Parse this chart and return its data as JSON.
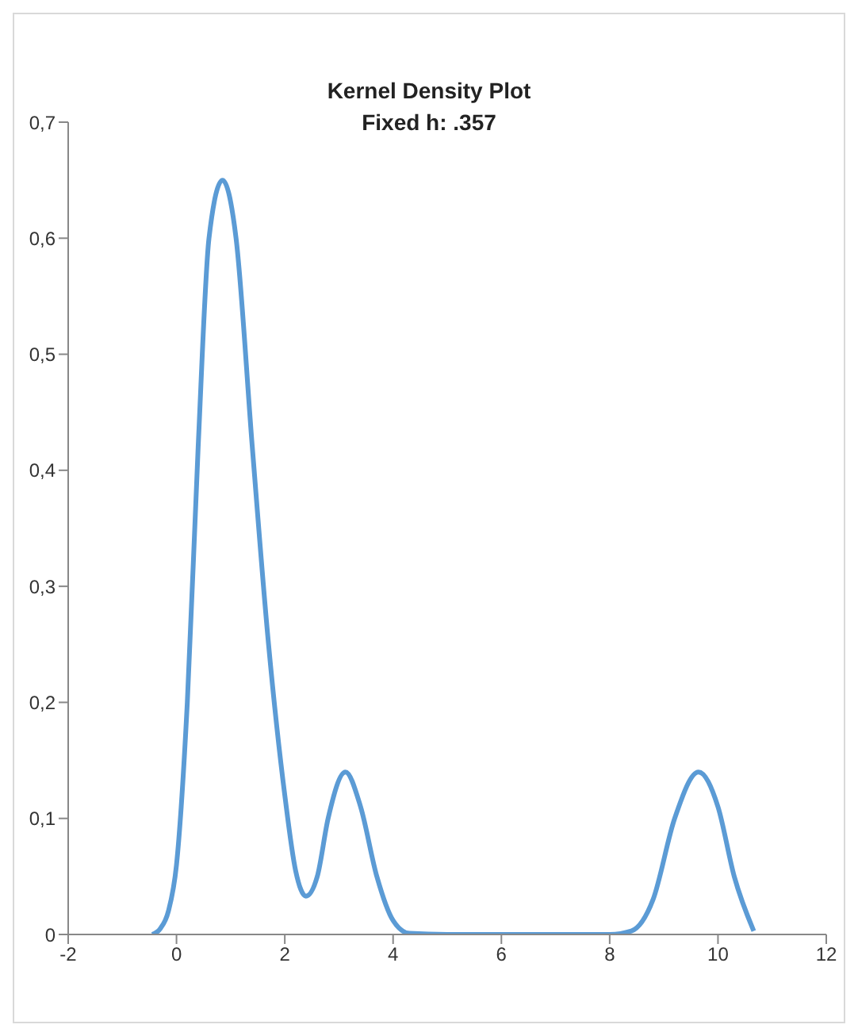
{
  "chart_data": {
    "type": "line",
    "title": "Kernel Density Plot",
    "subtitle": "Fixed h: .357",
    "x": [
      -0.45,
      -0.3,
      -0.15,
      0,
      0.2,
      0.4,
      0.6,
      0.85,
      1.1,
      1.4,
      1.7,
      2.0,
      2.2,
      2.39,
      2.6,
      2.8,
      3.12,
      3.4,
      3.7,
      4.0,
      4.3,
      5,
      6,
      7,
      8,
      8.4,
      8.8,
      9.2,
      9.64,
      10.0,
      10.3,
      10.66
    ],
    "series": [
      {
        "color": "#5b9bd5",
        "values": [
          0,
          0.005,
          0.02,
          0.06,
          0.2,
          0.42,
          0.6,
          0.65,
          0.6,
          0.42,
          0.25,
          0.12,
          0.055,
          0.033,
          0.05,
          0.1,
          0.14,
          0.11,
          0.05,
          0.012,
          0.001,
          0,
          0,
          0,
          0,
          0.003,
          0.03,
          0.1,
          0.14,
          0.11,
          0.05,
          0.003
        ]
      }
    ],
    "xlim": [
      -2,
      12
    ],
    "xticks": [
      -2,
      0,
      2,
      4,
      6,
      8,
      10,
      12
    ],
    "ylim": [
      0,
      0.7
    ],
    "yticks": [
      0,
      {
        "value": 0.1,
        "label": "0,1"
      },
      {
        "value": 0.2,
        "label": "0,2"
      },
      {
        "value": 0.3,
        "label": "0,3"
      },
      {
        "value": 0.4,
        "label": "0,4"
      },
      {
        "value": 0.5,
        "label": "0,5"
      },
      {
        "value": 0.6,
        "label": "0,6"
      },
      {
        "value": 0.7,
        "label": "0,7"
      }
    ],
    "grid": false,
    "legend": false,
    "marker": "none",
    "line_style": "solid"
  }
}
